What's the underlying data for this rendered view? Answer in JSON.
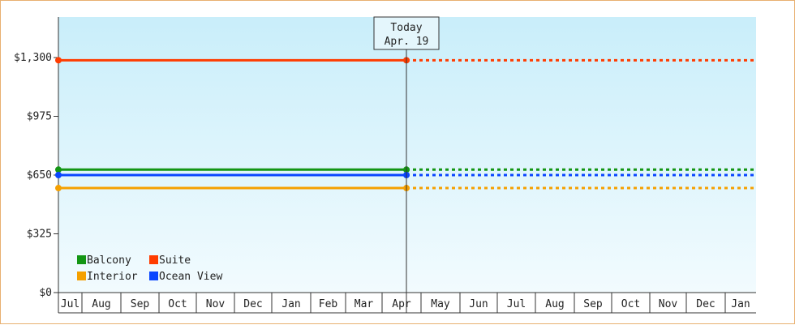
{
  "chart_data": {
    "type": "line",
    "y_ticks": [
      "$0",
      "$325",
      "$650",
      "$975",
      "$1,300"
    ],
    "y_tick_values": [
      0,
      325,
      650,
      975,
      1300
    ],
    "ylim": [
      0,
      1300
    ],
    "x_months": [
      "Jul",
      "Aug",
      "Sep",
      "Oct",
      "Nov",
      "Dec",
      "Jan",
      "Feb",
      "Mar",
      "Apr",
      "May",
      "Jun",
      "Jul",
      "Aug",
      "Sep",
      "Oct",
      "Nov",
      "Dec",
      "Jan"
    ],
    "today": {
      "title": "Today",
      "date": "Apr. 19"
    },
    "series": [
      {
        "name": "Balcony",
        "value": 680,
        "color": "#149614"
      },
      {
        "name": "Suite",
        "value": 1285,
        "color": "#ff3c00"
      },
      {
        "name": "Interior",
        "value": 578,
        "color": "#f5a000"
      },
      {
        "name": "Ocean View",
        "value": 650,
        "color": "#0a46ff"
      }
    ],
    "legend_position": "bottom-left",
    "colors": {
      "plot_bg_top": "#c9eefa",
      "plot_bg_bottom": "#f2fbfe",
      "axis": "#333333",
      "border": "#e8b070"
    }
  }
}
